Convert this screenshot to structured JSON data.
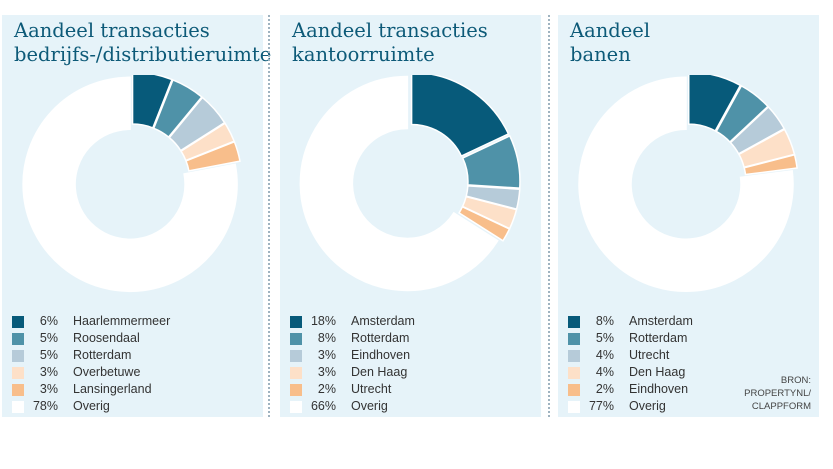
{
  "colors": {
    "palette": [
      "#075a7a",
      "#4f92a8",
      "#b6cbd9",
      "#fde0c8",
      "#f8be8b",
      "#ffffff"
    ],
    "panel_bg": "#e6f3f9",
    "title": "#0d5a78"
  },
  "panels": [
    {
      "title_lines": [
        "Aandeel transacties",
        "bedrijfs-/distributieruimte"
      ],
      "legend": [
        {
          "pct": "6%",
          "label": "Haarlemmermeer"
        },
        {
          "pct": "5%",
          "label": "Roosendaal"
        },
        {
          "pct": "5%",
          "label": "Rotterdam"
        },
        {
          "pct": "3%",
          "label": "Overbetuwe"
        },
        {
          "pct": "3%",
          "label": "Lansingerland"
        },
        {
          "pct": "78%",
          "label": "Overig"
        }
      ]
    },
    {
      "title_lines": [
        "Aandeel transacties",
        "kantoorruimte"
      ],
      "legend": [
        {
          "pct": "18%",
          "label": "Amsterdam"
        },
        {
          "pct": "8%",
          "label": "Rotterdam"
        },
        {
          "pct": "3%",
          "label": "Eindhoven"
        },
        {
          "pct": "3%",
          "label": "Den Haag"
        },
        {
          "pct": "2%",
          "label": "Utrecht"
        },
        {
          "pct": "66%",
          "label": "Overig"
        }
      ]
    },
    {
      "title_lines": [
        "Aandeel",
        "banen"
      ],
      "legend": [
        {
          "pct": "8%",
          "label": "Amsterdam"
        },
        {
          "pct": "5%",
          "label": "Rotterdam"
        },
        {
          "pct": "4%",
          "label": "Utrecht"
        },
        {
          "pct": "4%",
          "label": "Den Haag"
        },
        {
          "pct": "2%",
          "label": "Eindhoven"
        },
        {
          "pct": "77%",
          "label": "Overig"
        }
      ],
      "source_lines": [
        "BRON:",
        "PROPERTYNL/",
        "CLAPPFORM"
      ]
    }
  ],
  "chart_data": [
    {
      "type": "pie",
      "title": "Aandeel transacties bedrijfs-/distributieruimte",
      "categories": [
        "Haarlemmermeer",
        "Roosendaal",
        "Rotterdam",
        "Overbetuwe",
        "Lansingerland",
        "Overig"
      ],
      "values": [
        6,
        5,
        5,
        3,
        3,
        78
      ]
    },
    {
      "type": "pie",
      "title": "Aandeel transacties kantoorruimte",
      "categories": [
        "Amsterdam",
        "Rotterdam",
        "Eindhoven",
        "Den Haag",
        "Utrecht",
        "Overig"
      ],
      "values": [
        18,
        8,
        3,
        3,
        2,
        66
      ]
    },
    {
      "type": "pie",
      "title": "Aandeel banen",
      "categories": [
        "Amsterdam",
        "Rotterdam",
        "Utrecht",
        "Den Haag",
        "Eindhoven",
        "Overig"
      ],
      "values": [
        8,
        5,
        4,
        4,
        2,
        77
      ]
    }
  ]
}
